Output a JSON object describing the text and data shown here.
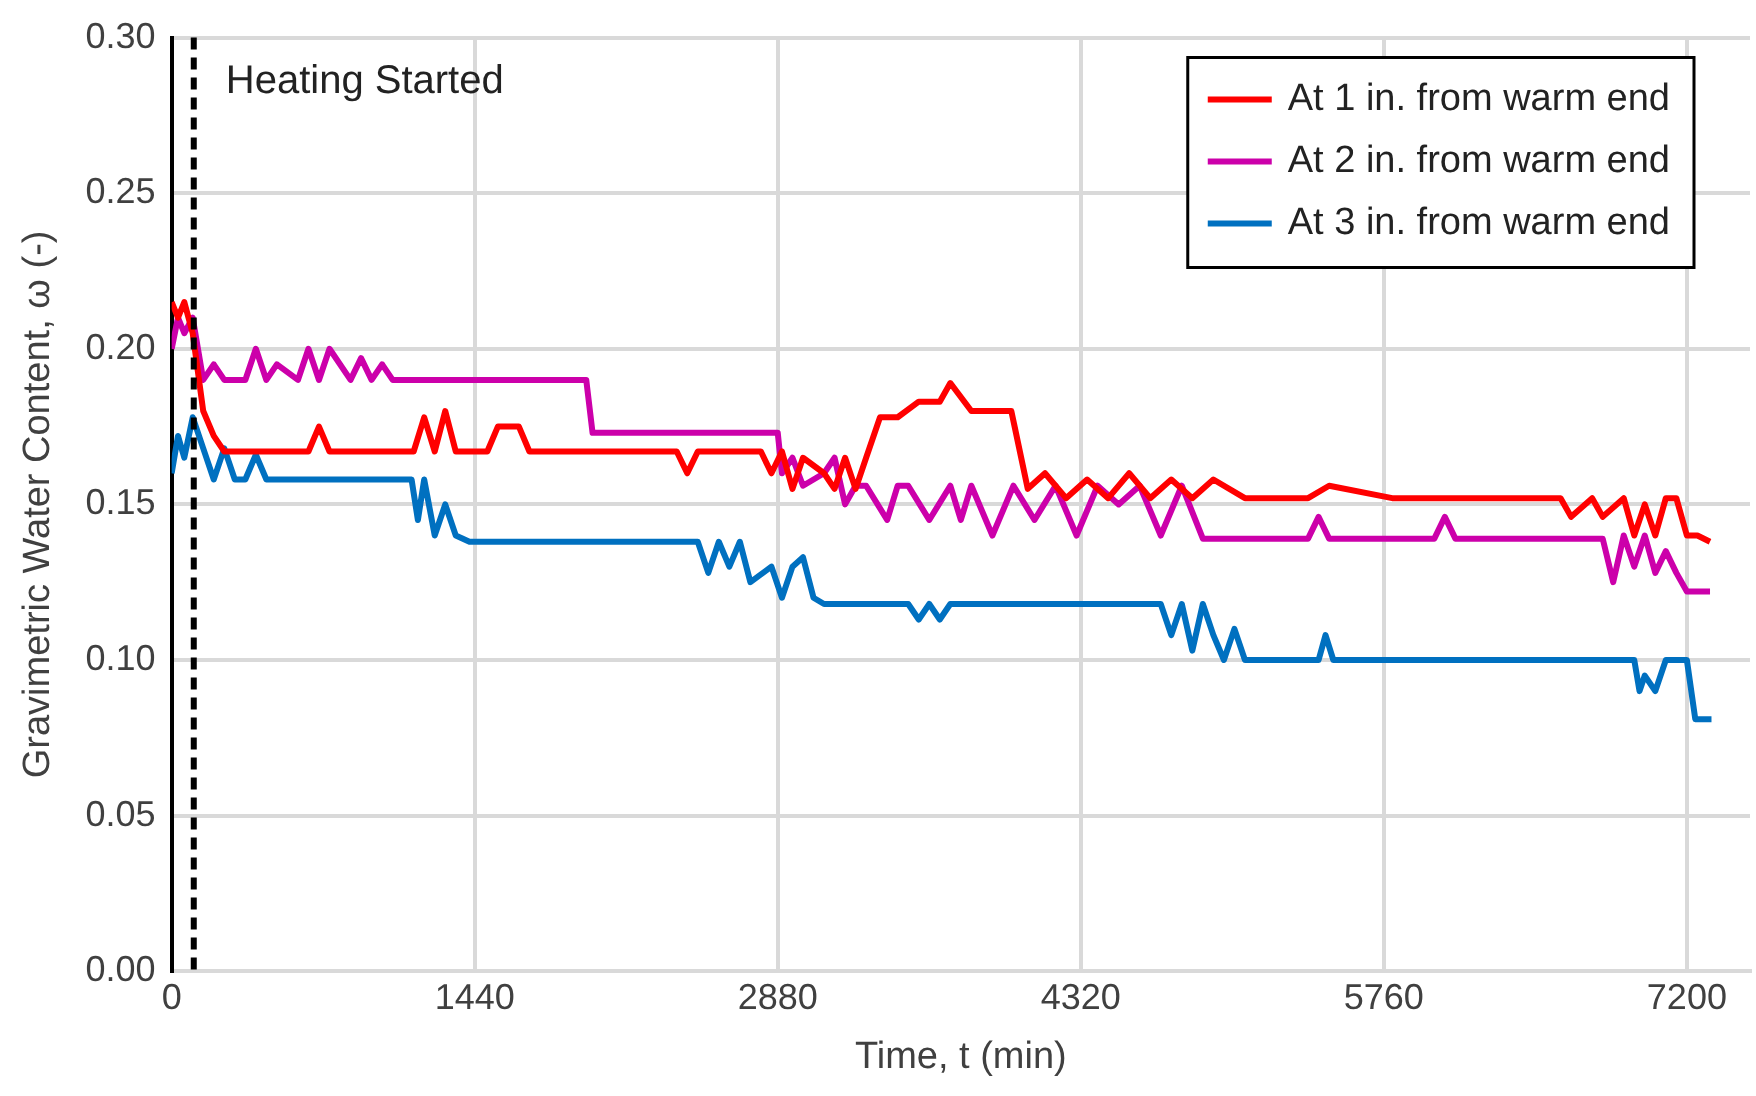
{
  "chart_data": {
    "type": "line",
    "xlabel": "Time, t (min)",
    "ylabel": "Gravimetric Water Content, ω (-)",
    "xlim": [
      0,
      7500
    ],
    "xticks": [
      0,
      1440,
      2880,
      4320,
      5760,
      7200
    ],
    "ylim": [
      0,
      0.3
    ],
    "yticks": [
      {
        "value": 0,
        "label": "0.00"
      },
      {
        "value": 0.05,
        "label": "0.05"
      },
      {
        "value": 0.1,
        "label": "0.10"
      },
      {
        "value": 0.15,
        "label": "0.15"
      },
      {
        "value": 0.2,
        "label": "0.20"
      },
      {
        "value": 0.25,
        "label": "0.25"
      },
      {
        "value": 0.3,
        "label": "0.30"
      }
    ],
    "grid": true,
    "legend": "top right",
    "marker": "none",
    "line_style": "solid",
    "ref_lines": [
      {
        "axis": "x",
        "value": 105,
        "label": "Heating Started",
        "color": "#000000",
        "line_style": "dashed"
      }
    ],
    "series": [
      {
        "name": "At 1 in. from warm end",
        "color": "#ff0000",
        "x": [
          0,
          30,
          60,
          100,
          150,
          200,
          250,
          650,
          700,
          750,
          800,
          1150,
          1200,
          1250,
          1300,
          1350,
          1400,
          1500,
          1550,
          1650,
          1700,
          1750,
          1900,
          1950,
          2400,
          2450,
          2500,
          2800,
          2850,
          2900,
          2950,
          3000,
          3100,
          3150,
          3200,
          3250,
          3300,
          3366,
          3450,
          3550,
          3650,
          3700,
          3800,
          3990,
          4068,
          4150,
          4250,
          4350,
          4450,
          4550,
          4650,
          4750,
          4850,
          4950,
          5100,
          5400,
          5500,
          5800,
          6600,
          6650,
          6750,
          6800,
          6900,
          6950,
          7000,
          7050,
          7100,
          7150,
          7200,
          7250,
          7310
        ],
        "values": [
          0.215,
          0.21,
          0.215,
          0.205,
          0.18,
          0.172,
          0.167,
          0.167,
          0.175,
          0.167,
          0.167,
          0.167,
          0.178,
          0.167,
          0.18,
          0.167,
          0.167,
          0.167,
          0.175,
          0.175,
          0.167,
          0.167,
          0.167,
          0.167,
          0.167,
          0.16,
          0.167,
          0.167,
          0.16,
          0.167,
          0.155,
          0.165,
          0.16,
          0.155,
          0.165,
          0.155,
          0.165,
          0.178,
          0.178,
          0.183,
          0.183,
          0.189,
          0.18,
          0.18,
          0.155,
          0.16,
          0.152,
          0.158,
          0.152,
          0.16,
          0.152,
          0.158,
          0.152,
          0.158,
          0.152,
          0.152,
          0.156,
          0.152,
          0.152,
          0.146,
          0.152,
          0.146,
          0.152,
          0.14,
          0.15,
          0.14,
          0.152,
          0.152,
          0.14,
          0.14,
          0.138
        ]
      },
      {
        "name": "At 2 in. from warm end",
        "color": "#cc00aa",
        "x": [
          0,
          30,
          60,
          100,
          150,
          200,
          250,
          350,
          400,
          450,
          500,
          600,
          650,
          700,
          750,
          850,
          900,
          950,
          1000,
          1050,
          1970,
          2000,
          2880,
          2900,
          2950,
          3000,
          3100,
          3150,
          3200,
          3250,
          3300,
          3400,
          3450,
          3500,
          3600,
          3700,
          3750,
          3800,
          3900,
          4000,
          4100,
          4200,
          4300,
          4400,
          4500,
          4600,
          4700,
          4800,
          4900,
          5000,
          5400,
          5450,
          5500,
          6000,
          6050,
          6100,
          6800,
          6850,
          6900,
          6950,
          7000,
          7050,
          7100,
          7150,
          7200,
          7310
        ],
        "values": [
          0.2,
          0.21,
          0.205,
          0.21,
          0.19,
          0.195,
          0.19,
          0.19,
          0.2,
          0.19,
          0.195,
          0.19,
          0.2,
          0.19,
          0.2,
          0.19,
          0.197,
          0.19,
          0.195,
          0.19,
          0.19,
          0.173,
          0.173,
          0.16,
          0.165,
          0.156,
          0.16,
          0.165,
          0.15,
          0.156,
          0.156,
          0.145,
          0.156,
          0.156,
          0.145,
          0.156,
          0.145,
          0.156,
          0.14,
          0.156,
          0.145,
          0.156,
          0.14,
          0.156,
          0.15,
          0.156,
          0.14,
          0.156,
          0.139,
          0.139,
          0.139,
          0.146,
          0.139,
          0.139,
          0.146,
          0.139,
          0.139,
          0.125,
          0.14,
          0.13,
          0.14,
          0.128,
          0.135,
          0.128,
          0.122,
          0.122
        ]
      },
      {
        "name": "At 3 in. from warm end",
        "color": "#0070c0",
        "x": [
          0,
          30,
          60,
          100,
          150,
          200,
          250,
          300,
          350,
          400,
          450,
          1140,
          1170,
          1200,
          1250,
          1300,
          1350,
          1415,
          2500,
          2550,
          2600,
          2650,
          2700,
          2750,
          2850,
          2900,
          2950,
          3000,
          3050,
          3100,
          3500,
          3550,
          3600,
          3650,
          3700,
          3750,
          4700,
          4750,
          4800,
          4850,
          4900,
          4950,
          5000,
          5050,
          5100,
          5258,
          5450,
          5483,
          5520,
          6950,
          6975,
          7000,
          7050,
          7100,
          7200,
          7240,
          7317
        ],
        "values": [
          0.16,
          0.172,
          0.165,
          0.178,
          0.168,
          0.158,
          0.168,
          0.158,
          0.158,
          0.166,
          0.158,
          0.158,
          0.145,
          0.158,
          0.14,
          0.15,
          0.14,
          0.138,
          0.138,
          0.128,
          0.138,
          0.13,
          0.138,
          0.125,
          0.13,
          0.12,
          0.13,
          0.133,
          0.12,
          0.118,
          0.118,
          0.113,
          0.118,
          0.113,
          0.118,
          0.118,
          0.118,
          0.108,
          0.118,
          0.103,
          0.118,
          0.108,
          0.1,
          0.11,
          0.1,
          0.1,
          0.1,
          0.108,
          0.1,
          0.1,
          0.09,
          0.095,
          0.09,
          0.1,
          0.1,
          0.081,
          0.081
        ]
      }
    ]
  }
}
